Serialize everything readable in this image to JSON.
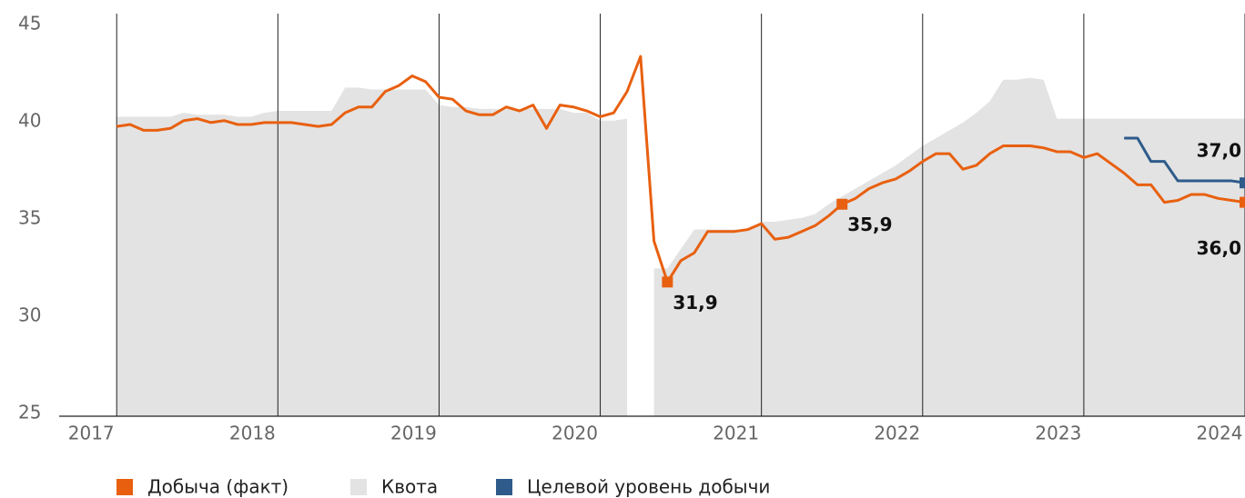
{
  "chart_data": {
    "type": "line",
    "x": [
      2017,
      2017.0833,
      2017.1667,
      2017.25,
      2017.3333,
      2017.4167,
      2017.5,
      2017.5833,
      2017.6667,
      2017.75,
      2017.8333,
      2017.9167,
      2018,
      2018.0833,
      2018.1667,
      2018.25,
      2018.3333,
      2018.4167,
      2018.5,
      2018.5833,
      2018.6667,
      2018.75,
      2018.8333,
      2018.9167,
      2019,
      2019.0833,
      2019.1667,
      2019.25,
      2019.3333,
      2019.4167,
      2019.5,
      2019.5833,
      2019.6667,
      2019.75,
      2019.8333,
      2019.9167,
      2020,
      2020.0833,
      2020.1667,
      2020.25,
      2020.3333,
      2020.4167,
      2020.5,
      2020.5833,
      2020.6667,
      2020.75,
      2020.8333,
      2020.9167,
      2021,
      2021.0833,
      2021.1667,
      2021.25,
      2021.3333,
      2021.4167,
      2021.5,
      2021.5833,
      2021.6667,
      2021.75,
      2021.8333,
      2021.9167,
      2022,
      2022.0833,
      2022.1667,
      2022.25,
      2022.3333,
      2022.4167,
      2022.5,
      2022.5833,
      2022.6667,
      2022.75,
      2022.8333,
      2022.9167,
      2023,
      2023.0833,
      2023.1667,
      2023.25,
      2023.3333,
      2023.4167,
      2023.5,
      2023.5833,
      2023.6667,
      2023.75,
      2023.8333,
      2023.9167,
      2024
    ],
    "series": [
      {
        "name": "Квота",
        "color": "#e3e3e3",
        "style": "area",
        "values": [
          40.4,
          40.4,
          40.4,
          40.4,
          40.4,
          40.6,
          40.5,
          40.5,
          40.5,
          40.4,
          40.4,
          40.6,
          40.7,
          40.7,
          40.7,
          40.7,
          40.7,
          41.9,
          41.9,
          41.8,
          41.8,
          41.8,
          41.8,
          41.8,
          41.0,
          40.9,
          40.9,
          40.8,
          40.8,
          40.8,
          40.8,
          40.8,
          40.8,
          40.8,
          40.6,
          40.6,
          40.2,
          40.2,
          40.3,
          null,
          32.6,
          32.6,
          33.6,
          34.6,
          34.6,
          34.6,
          34.6,
          34.6,
          35.0,
          35.0,
          35.1,
          35.2,
          35.4,
          35.9,
          36.3,
          36.7,
          37.1,
          37.5,
          37.9,
          38.4,
          38.9,
          39.3,
          39.7,
          40.1,
          40.6,
          41.2,
          42.3,
          42.3,
          42.4,
          42.3,
          40.3,
          40.3,
          40.3,
          40.3,
          40.3,
          40.3,
          40.3,
          40.3,
          40.3,
          40.3,
          40.3,
          40.3,
          40.3,
          40.3,
          40.3
        ]
      },
      {
        "name": "Добыча (факт)",
        "color": "#e8600f",
        "style": "line",
        "values": [
          39.9,
          40.0,
          39.7,
          39.7,
          39.8,
          40.2,
          40.3,
          40.1,
          40.2,
          40.0,
          40.0,
          40.1,
          40.1,
          40.1,
          40.0,
          39.9,
          40.0,
          40.6,
          40.9,
          40.9,
          41.7,
          42.0,
          42.5,
          42.2,
          41.4,
          41.3,
          40.7,
          40.5,
          40.5,
          40.9,
          40.7,
          41.0,
          39.8,
          41.0,
          40.9,
          40.7,
          40.4,
          40.6,
          41.7,
          43.5,
          34.0,
          31.9,
          33.0,
          33.4,
          34.5,
          34.5,
          34.5,
          34.6,
          34.9,
          34.1,
          34.2,
          34.5,
          34.8,
          35.3,
          35.9,
          36.2,
          36.7,
          37.0,
          37.2,
          37.6,
          38.1,
          38.5,
          38.5,
          37.7,
          37.9,
          38.5,
          38.9,
          38.9,
          38.9,
          38.8,
          38.6,
          38.6,
          38.3,
          38.5,
          38.0,
          37.5,
          36.9,
          36.9,
          36.0,
          36.1,
          36.4,
          36.4,
          36.2,
          36.1,
          36.0
        ],
        "value_labels": [
          null,
          null,
          null,
          null,
          null,
          null,
          null,
          null,
          null,
          null,
          null,
          null,
          null,
          null,
          null,
          null,
          null,
          null,
          null,
          null,
          null,
          null,
          null,
          null,
          null,
          null,
          null,
          null,
          null,
          null,
          null,
          null,
          null,
          null,
          null,
          null,
          null,
          null,
          null,
          null,
          null,
          "31,9",
          null,
          null,
          null,
          null,
          null,
          null,
          null,
          null,
          null,
          null,
          null,
          null,
          "35,9",
          null,
          null,
          null,
          null,
          null,
          null,
          null,
          null,
          null,
          null,
          null,
          null,
          null,
          null,
          null,
          null,
          null,
          null,
          null,
          null,
          null,
          null,
          null,
          null,
          null,
          null,
          null,
          null,
          null,
          "36,0"
        ]
      },
      {
        "name": "Целевой уровень добычи",
        "color": "#2e5b8a",
        "style": "line",
        "values": [
          null,
          null,
          null,
          null,
          null,
          null,
          null,
          null,
          null,
          null,
          null,
          null,
          null,
          null,
          null,
          null,
          null,
          null,
          null,
          null,
          null,
          null,
          null,
          null,
          null,
          null,
          null,
          null,
          null,
          null,
          null,
          null,
          null,
          null,
          null,
          null,
          null,
          null,
          null,
          null,
          null,
          null,
          null,
          null,
          null,
          null,
          null,
          null,
          null,
          null,
          null,
          null,
          null,
          null,
          null,
          null,
          null,
          null,
          null,
          null,
          null,
          null,
          null,
          null,
          null,
          null,
          null,
          null,
          null,
          null,
          null,
          null,
          null,
          null,
          null,
          39.3,
          39.3,
          38.1,
          38.1,
          37.1,
          37.1,
          37.1,
          37.1,
          37.1,
          37.0
        ],
        "value_labels": [
          null,
          null,
          null,
          null,
          null,
          null,
          null,
          null,
          null,
          null,
          null,
          null,
          null,
          null,
          null,
          null,
          null,
          null,
          null,
          null,
          null,
          null,
          null,
          null,
          null,
          null,
          null,
          null,
          null,
          null,
          null,
          null,
          null,
          null,
          null,
          null,
          null,
          null,
          null,
          null,
          null,
          null,
          null,
          null,
          null,
          null,
          null,
          null,
          null,
          null,
          null,
          null,
          null,
          null,
          null,
          null,
          null,
          null,
          null,
          null,
          null,
          null,
          null,
          null,
          null,
          null,
          null,
          null,
          null,
          null,
          null,
          null,
          null,
          null,
          null,
          null,
          null,
          null,
          null,
          null,
          null,
          null,
          null,
          null,
          "37,0"
        ]
      }
    ],
    "xlim": [
      2016.66,
      2024
    ],
    "xticks": [
      2017,
      2018,
      2019,
      2020,
      2021,
      2022,
      2023,
      2024
    ],
    "ylim": [
      25,
      45
    ],
    "yticks": [
      25,
      30,
      35,
      40,
      45
    ],
    "grid": true
  }
}
